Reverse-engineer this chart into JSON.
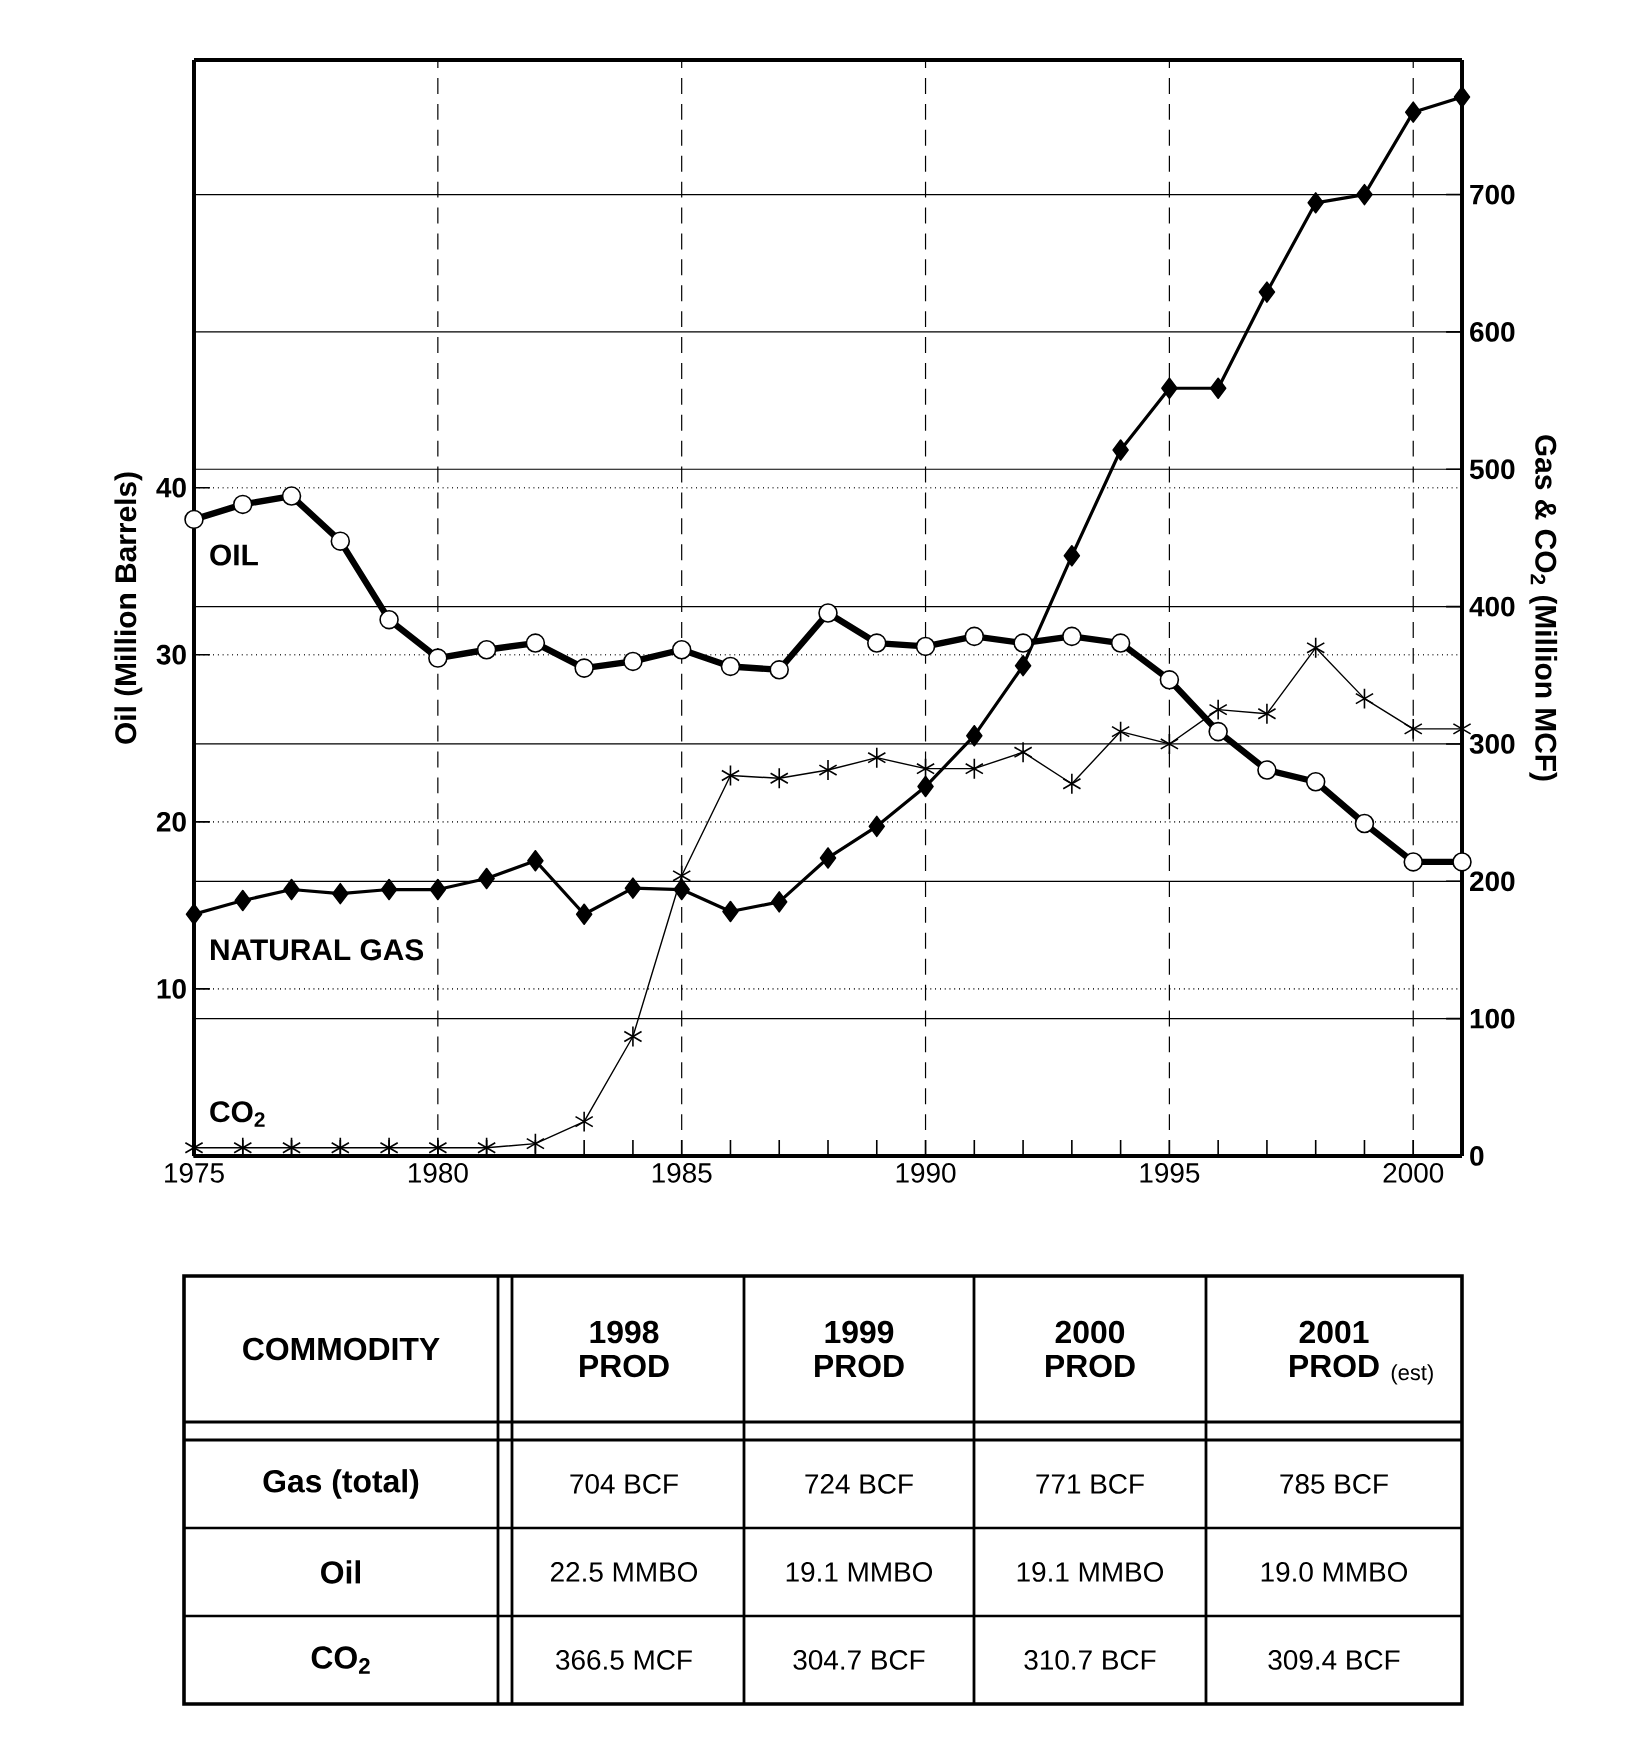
{
  "chart_data": {
    "type": "line",
    "x": [
      1975,
      1976,
      1977,
      1978,
      1979,
      1980,
      1981,
      1982,
      1983,
      1984,
      1985,
      1986,
      1987,
      1988,
      1989,
      1990,
      1991,
      1992,
      1993,
      1994,
      1995,
      1996,
      1997,
      1998,
      1999,
      2000,
      2001
    ],
    "xlim": [
      1975,
      2001
    ],
    "xticks": [
      1975,
      1980,
      1985,
      1990,
      1995,
      2000
    ],
    "ylim": [
      0,
      65.6
    ],
    "yticks": [
      10,
      20,
      30,
      40
    ],
    "y2lim": [
      0,
      798
    ],
    "y2ticks": [
      0,
      100,
      200,
      300,
      400,
      500,
      600,
      700
    ],
    "ylabel": "Oil (Million Barrels)",
    "y2label": "Gas & CO$_{2}$ (Million MCF)",
    "grid": true,
    "series": [
      {
        "name": "OIL",
        "color": "#000000",
        "marker": "circle",
        "values": [
          38.1,
          39.0,
          39.5,
          36.8,
          32.1,
          29.8,
          30.3,
          30.7,
          29.2,
          29.6,
          30.3,
          29.3,
          29.1,
          32.5,
          30.7,
          30.5,
          31.1,
          30.7,
          31.1,
          30.7,
          28.5,
          25.4,
          23.1,
          22.4,
          19.9,
          17.6,
          17.6
        ]
      },
      {
        "name": "NATURAL GAS",
        "color": "#000000",
        "marker": "diamond",
        "axis": "y2",
        "values": [
          176,
          186,
          194,
          191,
          194,
          194,
          202,
          215,
          176,
          195,
          194,
          178,
          185,
          217,
          240,
          269,
          306,
          357,
          437,
          514,
          559,
          559,
          629,
          694,
          700,
          760,
          771
        ]
      },
      {
        "name": "CO$_{2}$",
        "color": "#000000",
        "marker": "cross",
        "axis": "y2",
        "values": [
          6,
          6,
          6,
          6,
          6,
          6,
          6,
          9,
          25,
          87,
          204,
          277,
          275,
          281,
          290,
          282,
          282,
          294,
          271,
          309,
          300,
          325,
          322,
          370,
          333,
          311,
          311
        ]
      }
    ],
    "annotations": [
      "COMMODITY",
      "1998 PROD",
      "1999 PROD",
      "2000 PROD",
      "2001 PROD",
      "(est)",
      "Gas (total)",
      "704 BCF",
      "724 BCF",
      "771 BCF",
      "785 BCF",
      "Oil",
      "22.5 MMBO",
      "19.1 MMBO",
      "19.1 MMBO",
      "19.0 MMBO",
      "CO$_{2}$",
      "366.5 MCF",
      "304.7 BCF",
      "310.7 BCF",
      "309.4 BCF"
    ]
  }
}
